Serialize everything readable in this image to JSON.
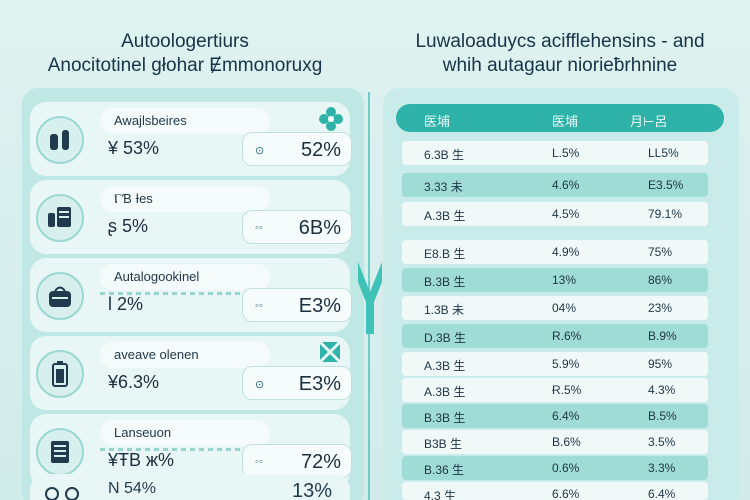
{
  "titles": {
    "left_line1": "Autoologertiurs",
    "left_line2": "Anocitotinel ɡłohar Ɇmmonoruxg",
    "right_line1": "Luwaloaduycs acifflehensins - and",
    "right_line2": "whih autagaur niorieƀrhnine"
  },
  "cards": [
    {
      "label": "Awajlsbeires",
      "value": "¥ 53%",
      "box": "52%",
      "mini": "⊙",
      "icon": "bottles-icon",
      "deco": "flower-icon"
    },
    {
      "label": "ⲄƁ Ɨes",
      "value": "ʂ 5%",
      "box": "6B%",
      "mini": "◦◦",
      "icon": "jar-icon",
      "deco": ""
    },
    {
      "label": "Autalogookinel",
      "value": "Ɩ 2%",
      "box": "E3%",
      "mini": "◦◦",
      "icon": "bag-icon",
      "deco": ""
    },
    {
      "label": "aveave olenen",
      "value": "¥6.3%",
      "box": "E3%",
      "mini": "⊙",
      "icon": "battery-icon",
      "deco": "tile-icon"
    },
    {
      "label": "Lanseuon",
      "value": "¥ŦB ж%",
      "box": "72%",
      "mini": "◦◦",
      "icon": "tablet-icon",
      "deco": ""
    },
    {
      "label": "N 54%",
      "value": "",
      "box": "13%",
      "mini": "",
      "icon": "wheels-icon",
      "deco": ""
    }
  ],
  "table": {
    "headers": [
      "医埔",
      "医埔",
      "月⊢呂"
    ],
    "rows": [
      [
        "6.3B 生",
        "L.5%",
        "LL5%"
      ],
      [
        "3.33 未",
        "4.6%",
        "E3.5%"
      ],
      [
        "A.3B 生",
        "4.5%",
        "79.1%"
      ],
      [
        "E8.B 生",
        "4.9%",
        "75%"
      ],
      [
        "B.3B 生",
        "13%",
        "86%"
      ],
      [
        "1.3B 未",
        "04%",
        "23%"
      ],
      [
        "D.3B 生",
        "R.6%",
        "B.9%"
      ],
      [
        "A.3B 生",
        "5.9%",
        "95%"
      ],
      [
        "A.3B 生",
        "Ɍ.5%",
        "4.3%"
      ],
      [
        "B.3B 生",
        "6.4%",
        "B.5%"
      ],
      [
        "B3B 生",
        "B.6%",
        "3.5%"
      ],
      [
        "B.36 生",
        "0.6%",
        "3.3%"
      ],
      [
        "4.3 生",
        "6.6%",
        "6.4%"
      ]
    ]
  },
  "colors": {
    "accent": "#2fb3a9",
    "panel": "#bfe7e3",
    "row_alt": "#9fdcd5"
  }
}
